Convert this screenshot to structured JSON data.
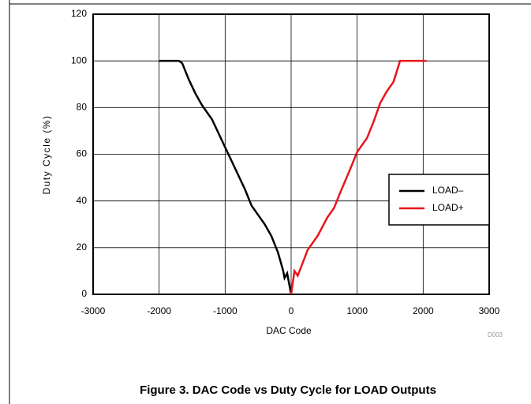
{
  "chart_data": {
    "type": "line",
    "caption": "Figure 3. DAC Code vs Duty Cycle for LOAD Outputs",
    "xlabel": "DAC Code",
    "ylabel": "Duty Cycle (%)",
    "note": "D003",
    "xlim": [
      -3000,
      3000
    ],
    "xticks": [
      -3000,
      -2000,
      -1000,
      0,
      1000,
      2000,
      3000
    ],
    "ylim": [
      0,
      120
    ],
    "yticks": [
      0,
      20,
      40,
      60,
      80,
      100,
      120
    ],
    "grid": true,
    "legend": "right",
    "series": [
      {
        "name": "LOAD–",
        "color": "#000000",
        "x": [
          -2000,
          -1700,
          -1650,
          -1550,
          -1450,
          -1350,
          -1200,
          -1100,
          -1000,
          -900,
          -800,
          -700,
          -600,
          -500,
          -400,
          -300,
          -200,
          -120,
          -100,
          -60,
          -40,
          0
        ],
        "values": [
          100,
          100,
          99,
          92,
          86,
          81,
          75,
          69,
          63,
          57,
          51,
          45,
          38,
          34,
          30,
          25,
          18,
          10,
          7,
          9,
          6,
          0
        ]
      },
      {
        "name": "LOAD+",
        "color": "#e8141b",
        "x": [
          0,
          50,
          100,
          250,
          400,
          550,
          650,
          750,
          900,
          1000,
          1150,
          1250,
          1350,
          1450,
          1550,
          1650,
          2050
        ],
        "values": [
          0,
          10,
          8,
          19,
          25,
          33,
          37,
          44,
          54,
          61,
          67,
          74,
          82,
          87,
          91,
          100,
          100
        ]
      }
    ]
  }
}
